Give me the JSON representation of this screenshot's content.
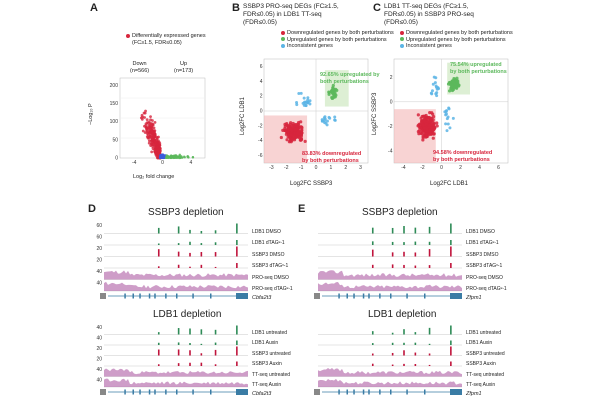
{
  "panels": {
    "A": {
      "label": "A",
      "legend": "Differentially expressed genes",
      "legend_sub": "(FC≥1.5, FDR≤0.05)",
      "down_label": "Down",
      "down_n": "(n=566)",
      "up_label": "Up",
      "up_n": "(n=173)",
      "xlabel": "Log₂ fold change",
      "ylabel": "−Log₁₀ P",
      "x_ticks": [
        "-4",
        "0",
        "4"
      ],
      "y_ticks": [
        "0",
        "50",
        "100",
        "150",
        "200"
      ]
    },
    "B": {
      "label": "B",
      "title": "SSBP3 PRO-seq DEGs (FC≥1.5, FDR≤0.05) in LDB1 TT-seq (FDR≤0.05)",
      "title_lines": [
        "SSBP3 PRO-seq DEGs (FC≥1.5,",
        "FDR≤0.05) in LDB1 TT-seq",
        "(FDR≤0.05)"
      ],
      "legend": [
        "Downregulated genes by both perturbations",
        "Upregulated genes by both perturbations",
        "Inconsistent genes"
      ],
      "up_annot": [
        "92.65% upregulated by",
        "both perturbations"
      ],
      "down_annot": [
        "83.83% downregulated",
        "by both perturbations"
      ],
      "xlabel": "Log2FC SSBP3",
      "ylabel": "Log2FC LDB1",
      "x_ticks": [
        "-3",
        "-2",
        "-1",
        "0",
        "1",
        "2",
        "3"
      ],
      "y_ticks": [
        "-6",
        "-4",
        "-2",
        "0",
        "2",
        "4",
        "6"
      ]
    },
    "C": {
      "label": "C",
      "title_lines": [
        "LDB1 TT-seq DEGs (FC≥1.5,",
        "FDR≤0.05) in SSBP3 PRO-seq",
        "(FDR≤0.05)"
      ],
      "legend": [
        "Downregulated genes by both perturbations",
        "Upregulated genes by both perturbations",
        "Inconsistent genes"
      ],
      "up_annot": [
        "75.54% upregulated",
        "by both perturbations"
      ],
      "down_annot": [
        "94.58% downregulated",
        "by both perturbations"
      ],
      "xlabel": "Log2FC LDB1",
      "ylabel": "Log2FC SSBP3",
      "x_ticks": [
        "-4",
        "-2",
        "0",
        "2",
        "4",
        "6"
      ],
      "y_ticks": [
        "-4",
        "-2",
        "0",
        "2"
      ]
    },
    "D": {
      "label": "D",
      "title_top": "SSBP3 depletion",
      "tracks_top": [
        "LDB1 DMSO",
        "LDB1 dTAGᵛ-1",
        "SSBP3 DMSO",
        "SSBP3 dTAGᵛ-1",
        "PRO-seq DMSO",
        "PRO-seq dTAGᵛ-1"
      ],
      "scale_top": [
        "60",
        "0",
        "60",
        "0",
        "20",
        "0",
        "20",
        "0",
        "40",
        "0",
        "40",
        "0"
      ],
      "gene_top": "Cbfa2t3",
      "title_bottom": "LDB1 depletion",
      "tracks_bottom": [
        "LDB1 untreated",
        "LDB1 Auxin",
        "SSBP3 untreated",
        "SSBP3 Auxin",
        "TT-seq untreated",
        "TT-seq Auxin"
      ],
      "scale_bottom": [
        "40",
        "0",
        "40",
        "0",
        "20",
        "0",
        "20",
        "0",
        "40",
        "0",
        "40",
        "0"
      ],
      "gene_bottom": "Cbfa2t3"
    },
    "E": {
      "label": "E",
      "title_top": "SSBP3 depletion",
      "tracks_top": [
        "LDB1 DMSO",
        "LDB1 dTAGᵛ-1",
        "SSBP3 DMSO",
        "SSBP3 dTAGᵛ-1",
        "PRO-seq DMSO",
        "PRO-seq dTAGᵛ-1"
      ],
      "gene_top": "Zfpm1",
      "title_bottom": "LDB1 depletion",
      "tracks_bottom": [
        "LDB1 untreated",
        "LDB1 Auxin",
        "SSBP3 untreated",
        "SSBP3 Auxin",
        "TT-seq untreated",
        "TT-seq Auxin"
      ],
      "gene_bottom": "Zfpm1"
    }
  },
  "colors": {
    "down": "#d7263d",
    "up": "#5cb85c",
    "inconsistent": "#5bb4e5",
    "ldb1": "#2e8b57",
    "ssbp3": "#c0143c",
    "proseq": "#a64d9a",
    "gene": "#3a7ca5"
  }
}
